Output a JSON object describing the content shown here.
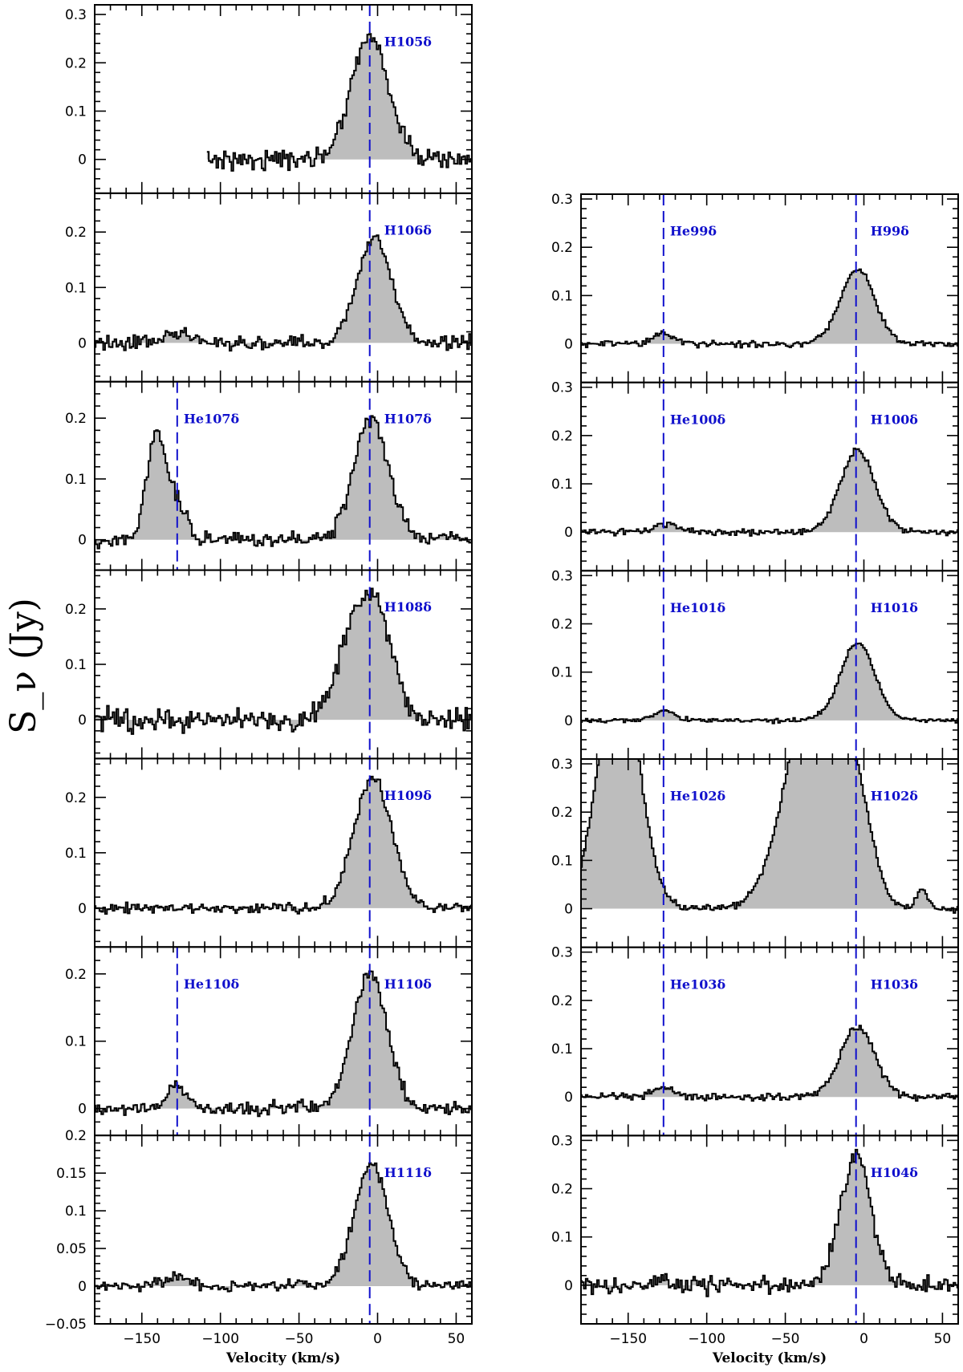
{
  "chart_data": {
    "type": "line",
    "ylabel": "S_ν (Jy)",
    "xlabel": "Velocity (km/s)",
    "xlim": [
      -180,
      60
    ],
    "xticks": [
      -150,
      -100,
      -50,
      0,
      50
    ],
    "xtick_labels": [
      "−150",
      "−100",
      "−50",
      "0",
      "50"
    ],
    "systemic_velocity": -5,
    "he_velocity": -127.5,
    "line_color": "#1010cc",
    "fill_color": "#bdbdbd",
    "columns": [
      {
        "panels": [
          {
            "label": "H105δ",
            "ylim": [
              -0.07,
              0.32
            ],
            "yticks": [
              0,
              0.1,
              0.2,
              0.3
            ],
            "ytick_labels": [
              "0",
              "0.1",
              "0.2",
              "0.3"
            ],
            "x_start": -108,
            "components": [
              {
                "center": -5,
                "amp": 0.255,
                "sigma": 12
              }
            ],
            "noise": 0.012
          },
          {
            "label": "H106δ",
            "ylim": [
              -0.07,
              0.27
            ],
            "yticks": [
              0,
              0.1,
              0.2
            ],
            "ytick_labels": [
              "0",
              "0.1",
              "0.2"
            ],
            "components": [
              {
                "center": -2,
                "amp": 0.19,
                "sigma": 11
              },
              {
                "center": -127,
                "amp": 0.018,
                "sigma": 8
              }
            ],
            "noise": 0.008
          },
          {
            "label": "H107δ",
            "he_label": "He107δ",
            "ylim": [
              -0.05,
              0.26
            ],
            "yticks": [
              0,
              0.1,
              0.2
            ],
            "ytick_labels": [
              "0",
              "0.1",
              "0.2"
            ],
            "components": [
              {
                "center": -4,
                "amp": 0.2,
                "sigma": 11
              },
              {
                "center": -141,
                "amp": 0.17,
                "sigma": 6
              },
              {
                "center": -128,
                "amp": 0.06,
                "sigma": 6
              }
            ],
            "noise": 0.008
          },
          {
            "label": "H108δ",
            "ylim": [
              -0.07,
              0.27
            ],
            "yticks": [
              0,
              0.1,
              0.2
            ],
            "ytick_labels": [
              "0",
              "0.1",
              "0.2"
            ],
            "components": [
              {
                "center": -2,
                "amp": 0.21,
                "sigma": 11
              },
              {
                "center": -20,
                "amp": 0.1,
                "sigma": 9
              }
            ],
            "noise": 0.013
          },
          {
            "label": "H109δ",
            "ylim": [
              -0.07,
              0.27
            ],
            "yticks": [
              0,
              0.1,
              0.2
            ],
            "ytick_labels": [
              "0",
              "0.1",
              "0.2"
            ],
            "components": [
              {
                "center": -3,
                "amp": 0.235,
                "sigma": 12
              }
            ],
            "noise": 0.006
          },
          {
            "label": "H110δ",
            "he_label": "He110δ",
            "ylim": [
              -0.04,
              0.24
            ],
            "yticks": [
              0,
              0.1,
              0.2
            ],
            "ytick_labels": [
              "0",
              "0.1",
              "0.2"
            ],
            "components": [
              {
                "center": -5,
                "amp": 0.2,
                "sigma": 11
              },
              {
                "center": -128,
                "amp": 0.035,
                "sigma": 6
              }
            ],
            "noise": 0.006
          },
          {
            "label": "H111δ",
            "ylim": [
              -0.05,
              0.2
            ],
            "yticks": [
              -0.05,
              0,
              0.05,
              0.1,
              0.15,
              0.2
            ],
            "ytick_labels": [
              "−0.05",
              "0",
              "0.05",
              "0.1",
              "0.15",
              "0.2"
            ],
            "components": [
              {
                "center": -4,
                "amp": 0.16,
                "sigma": 11
              },
              {
                "center": -127,
                "amp": 0.012,
                "sigma": 8
              }
            ],
            "noise": 0.005
          }
        ]
      },
      {
        "panels": [
          {
            "label": "H99δ",
            "he_label": "He99δ",
            "ylim": [
              -0.08,
              0.31
            ],
            "yticks": [
              0,
              0.1,
              0.2,
              0.3
            ],
            "ytick_labels": [
              "0",
              "0.1",
              "0.2",
              "0.3"
            ],
            "components": [
              {
                "center": -4,
                "amp": 0.155,
                "sigma": 11
              },
              {
                "center": -127,
                "amp": 0.02,
                "sigma": 7
              }
            ],
            "noise": 0.004
          },
          {
            "label": "H100δ",
            "he_label": "He100δ",
            "ylim": [
              -0.08,
              0.31
            ],
            "yticks": [
              0,
              0.1,
              0.2,
              0.3
            ],
            "ytick_labels": [
              "0",
              "0.1",
              "0.2",
              "0.3"
            ],
            "components": [
              {
                "center": -4,
                "amp": 0.17,
                "sigma": 11
              },
              {
                "center": -127,
                "amp": 0.018,
                "sigma": 7
              }
            ],
            "noise": 0.004
          },
          {
            "label": "H101δ",
            "he_label": "He101δ",
            "ylim": [
              -0.08,
              0.31
            ],
            "yticks": [
              0,
              0.1,
              0.2,
              0.3
            ],
            "ytick_labels": [
              "0",
              "0.1",
              "0.2",
              "0.3"
            ],
            "components": [
              {
                "center": -4,
                "amp": 0.16,
                "sigma": 11
              },
              {
                "center": -127,
                "amp": 0.02,
                "sigma": 7
              }
            ],
            "noise": 0.003
          },
          {
            "label": "H102δ",
            "he_label": "He102δ",
            "ylim": [
              -0.08,
              0.31
            ],
            "yticks": [
              0,
              0.1,
              0.2,
              0.3
            ],
            "ytick_labels": [
              "0",
              "0.1",
              "0.2",
              "0.3"
            ],
            "components": [
              {
                "center": -30,
                "amp": 0.5,
                "sigma": 18
              },
              {
                "center": -156,
                "amp": 0.5,
                "sigma": 13
              },
              {
                "center": 37,
                "amp": 0.035,
                "sigma": 4
              },
              {
                "center": -3,
                "amp": 0.12,
                "sigma": 9
              }
            ],
            "noise": 0.004
          },
          {
            "label": "H103δ",
            "he_label": "He103δ",
            "ylim": [
              -0.08,
              0.31
            ],
            "yticks": [
              0,
              0.1,
              0.2,
              0.3
            ],
            "ytick_labels": [
              "0",
              "0.1",
              "0.2",
              "0.3"
            ],
            "components": [
              {
                "center": -4,
                "amp": 0.145,
                "sigma": 11
              },
              {
                "center": -127,
                "amp": 0.02,
                "sigma": 7
              }
            ],
            "noise": 0.005
          },
          {
            "label": "H104δ",
            "ylim": [
              -0.08,
              0.31
            ],
            "yticks": [
              0,
              0.1,
              0.2,
              0.3
            ],
            "ytick_labels": [
              "0",
              "0.1",
              "0.2",
              "0.3"
            ],
            "components": [
              {
                "center": -5,
                "amp": 0.265,
                "sigma": 10
              },
              {
                "center": -127,
                "amp": 0.018,
                "sigma": 6
              }
            ],
            "noise": 0.012
          }
        ]
      }
    ]
  }
}
